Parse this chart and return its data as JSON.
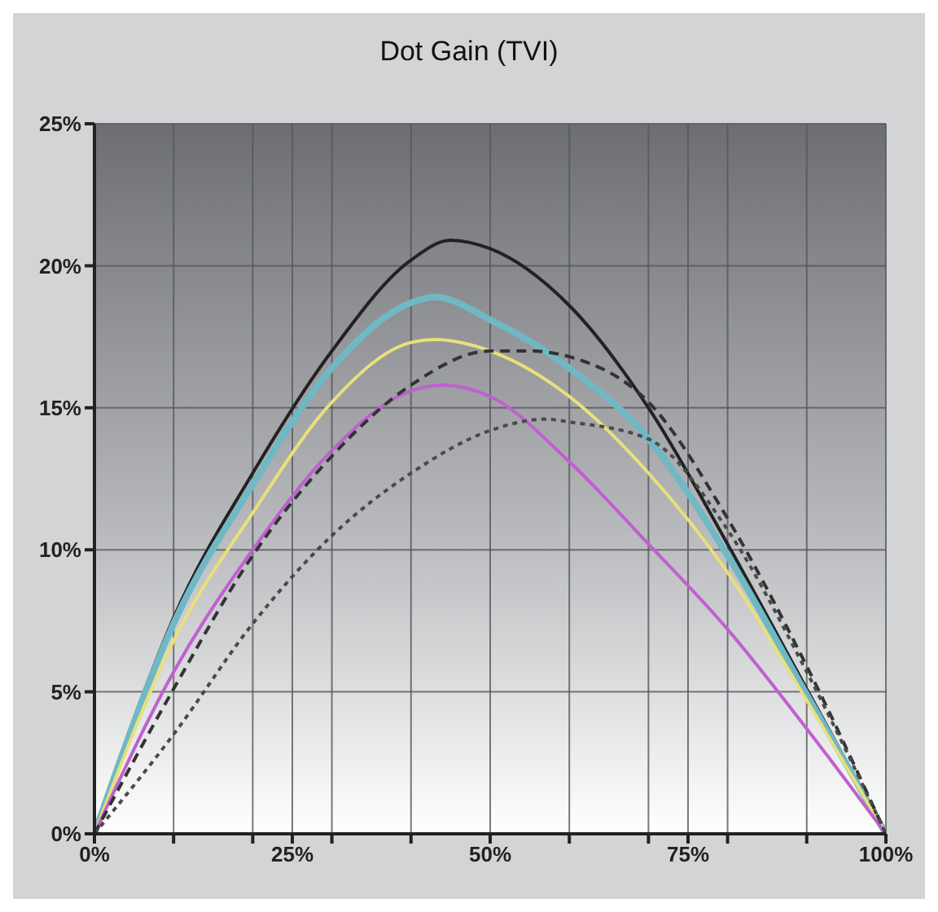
{
  "chart_data": {
    "type": "line",
    "title": "Dot Gain (TVI)",
    "xlim": [
      0,
      100
    ],
    "ylim": [
      0,
      25
    ],
    "xticks": [
      {
        "value": 0,
        "label": "0%"
      },
      {
        "value": 10,
        "label": null
      },
      {
        "value": 20,
        "label": null
      },
      {
        "value": 25,
        "label": "25%"
      },
      {
        "value": 30,
        "label": null
      },
      {
        "value": 40,
        "label": null
      },
      {
        "value": 50,
        "label": "50%"
      },
      {
        "value": 60,
        "label": null
      },
      {
        "value": 70,
        "label": null
      },
      {
        "value": 75,
        "label": "75%"
      },
      {
        "value": 80,
        "label": null
      },
      {
        "value": 90,
        "label": null
      },
      {
        "value": 100,
        "label": "100%"
      }
    ],
    "yticks": [
      {
        "value": 0,
        "label": "0%"
      },
      {
        "value": 5,
        "label": "5%"
      },
      {
        "value": 10,
        "label": "10%"
      },
      {
        "value": 15,
        "label": "15%"
      },
      {
        "value": 20,
        "label": "20%"
      },
      {
        "value": 25,
        "label": "25%"
      }
    ],
    "grid": true,
    "legend": false,
    "marker": "none",
    "series": [
      {
        "color": "#222222",
        "line_style": "solid",
        "x": [
          0,
          10,
          20,
          30,
          40,
          45,
          50,
          60,
          70,
          80,
          90,
          100
        ],
        "values": [
          0,
          7.6,
          12.7,
          17.0,
          20.2,
          20.9,
          20.6,
          18.6,
          15.0,
          10.2,
          5.1,
          0
        ]
      },
      {
        "color": "#6fb8c4",
        "line_style": "solid",
        "x": [
          0,
          10,
          20,
          30,
          40,
          43,
          50,
          60,
          70,
          80,
          90,
          100
        ],
        "values": [
          0,
          7.4,
          12.3,
          16.4,
          18.7,
          18.9,
          18.1,
          16.4,
          13.9,
          9.8,
          4.9,
          0
        ]
      },
      {
        "color": "#e8e07a",
        "line_style": "solid",
        "x": [
          0,
          10,
          20,
          30,
          40,
          43,
          50,
          60,
          70,
          80,
          90,
          100
        ],
        "values": [
          0,
          6.8,
          11.3,
          15.2,
          17.3,
          17.4,
          17.0,
          15.4,
          12.7,
          9.2,
          4.7,
          0
        ]
      },
      {
        "color": "#c060d0",
        "line_style": "solid",
        "x": [
          0,
          10,
          20,
          30,
          40,
          44,
          50,
          60,
          70,
          80,
          90,
          100
        ],
        "values": [
          0,
          5.7,
          10.0,
          13.5,
          15.6,
          15.8,
          15.4,
          13.1,
          10.2,
          7.2,
          3.7,
          0
        ]
      },
      {
        "color": "#333333",
        "line_style": "dashed",
        "x": [
          0,
          10,
          20,
          30,
          40,
          50,
          55,
          60,
          70,
          80,
          90,
          100
        ],
        "values": [
          0,
          5.1,
          9.8,
          13.3,
          15.8,
          17.0,
          17.0,
          16.8,
          15.2,
          11.1,
          5.9,
          0
        ]
      },
      {
        "color": "#4a4a4a",
        "line_style": "dotted",
        "x": [
          0,
          10,
          20,
          30,
          40,
          50,
          57,
          60,
          70,
          80,
          90,
          100
        ],
        "values": [
          0,
          3.5,
          7.4,
          10.5,
          12.7,
          14.2,
          14.6,
          14.5,
          13.9,
          10.7,
          5.7,
          0
        ]
      }
    ]
  }
}
